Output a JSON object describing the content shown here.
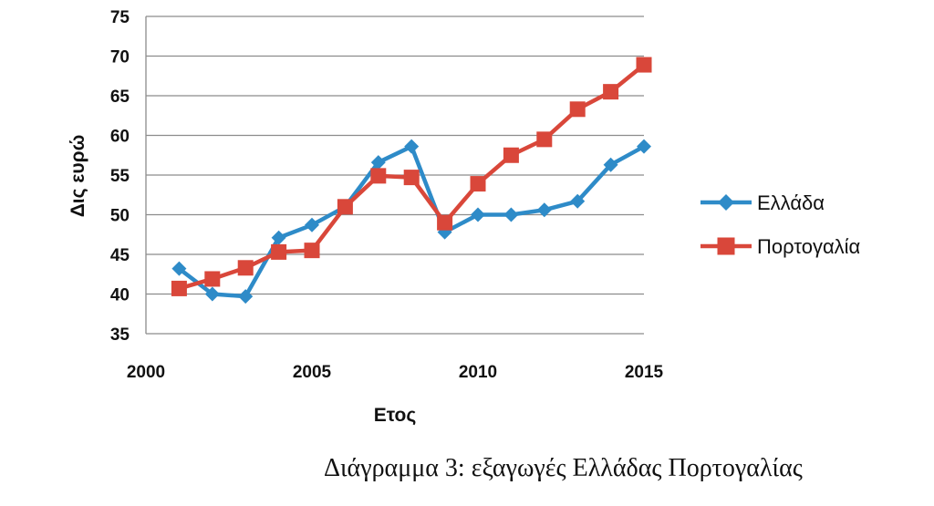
{
  "chart_data": {
    "type": "line",
    "xlabel": "Ετος",
    "ylabel": "Δις ευρώ",
    "xlim": [
      2000,
      2015
    ],
    "ylim": [
      35,
      75
    ],
    "x_ticks": [
      2000,
      2005,
      2010,
      2015
    ],
    "y_ticks": [
      35,
      40,
      45,
      50,
      55,
      60,
      65,
      70,
      75
    ],
    "grid": "horizontal",
    "legend_position": "right",
    "x": [
      2001,
      2002,
      2003,
      2004,
      2005,
      2006,
      2007,
      2008,
      2009,
      2010,
      2011,
      2012,
      2013,
      2014,
      2015
    ],
    "series": [
      {
        "name": "Ελλάδα",
        "color": "#2e8bc8",
        "marker": "diamond",
        "values": [
          43.2,
          40.0,
          39.7,
          47.1,
          48.7,
          51.0,
          56.6,
          58.6,
          47.8,
          50.0,
          50.0,
          50.6,
          51.7,
          56.3,
          58.6
        ]
      },
      {
        "name": "Πορτογαλία",
        "color": "#d9473a",
        "marker": "square",
        "values": [
          40.7,
          41.9,
          43.3,
          45.3,
          45.5,
          51.0,
          54.9,
          54.7,
          49.0,
          53.9,
          57.5,
          59.5,
          63.3,
          65.5,
          68.9
        ]
      }
    ]
  },
  "caption": "Διάγραμμα 3: εξαγωγές Ελλάδας Πορτογαλίας"
}
